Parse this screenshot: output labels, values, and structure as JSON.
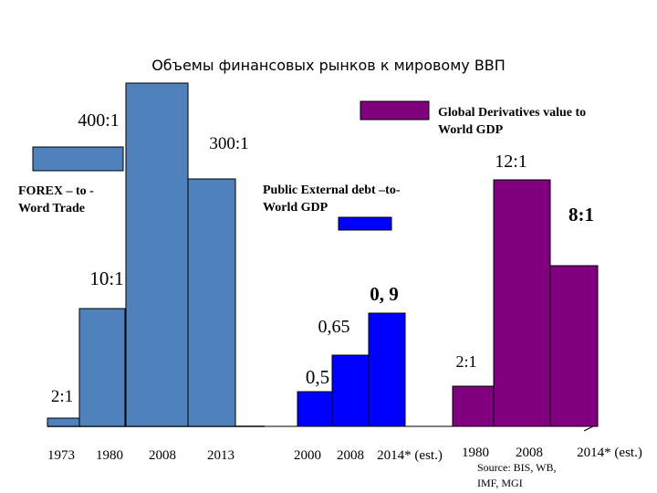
{
  "chart_data": {
    "type": "bar",
    "title": "Объемы финансовых рынков к мировому ВВП",
    "colors": {
      "forex": "#4f81bd",
      "debt": "#0000ff",
      "derivatives": "#800080",
      "stroke": "#000000"
    },
    "groups": [
      {
        "name": "FOREX – to - Word Trade",
        "legend_lines": [
          "FOREX – to -",
          "Word Trade"
        ],
        "categories": [
          "1973",
          "1980",
          "2008",
          "2013"
        ],
        "values": [
          2,
          10,
          400,
          300
        ],
        "labels": [
          "2:1",
          "10:1",
          "400:1",
          "300:1"
        ]
      },
      {
        "name": "Public External debt –to- World GDP",
        "legend_lines": [
          "Public External debt –to-",
          "World GDP"
        ],
        "categories": [
          "2000",
          "2008",
          "2014* (est.)"
        ],
        "values": [
          0.5,
          0.65,
          0.9
        ],
        "labels": [
          "0,5",
          "0,65",
          "0, 9"
        ]
      },
      {
        "name": "Global Derivatives value to World GDP",
        "legend_lines": [
          "Global Derivatives value to",
          "World GDP"
        ],
        "categories": [
          "1980",
          "2008",
          "2014* (est.)"
        ],
        "values": [
          2,
          12,
          8
        ],
        "labels": [
          "2:1",
          "12:1",
          "8:1"
        ]
      }
    ],
    "source_lines": [
      "Source: BIS, WB,",
      "IMF, MGI"
    ],
    "xlabel": "",
    "ylabel": "",
    "grid": false,
    "scale_note": "bar heights are not proportional across groups (illustrative)"
  }
}
